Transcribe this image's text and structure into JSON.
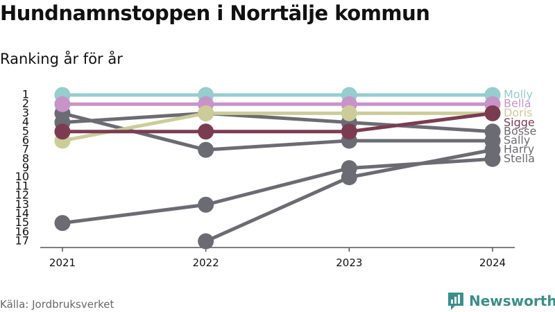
{
  "header": {
    "title": "Hundnamnstoppen i Norrtälje kommun",
    "subtitle": "Ranking år för år"
  },
  "footer": {
    "source": "Källa: Jordbruksverket",
    "brand": "Newsworthy"
  },
  "chart_data": {
    "type": "line",
    "title": "Hundnamnstoppen i Norrtälje kommun",
    "subtitle": "Ranking år för år",
    "x": [
      2021,
      2022,
      2023,
      2024
    ],
    "y_ticks": [
      1,
      2,
      3,
      4,
      5,
      6,
      7,
      8,
      9,
      10,
      11,
      12,
      13,
      14,
      15,
      16,
      17
    ],
    "ylim": [
      1,
      17
    ],
    "y_inverted": true,
    "grid": false,
    "legend": "direct-labels-right",
    "series": [
      {
        "name": "Molly",
        "color": "#96cdcd",
        "values": [
          1,
          1,
          1,
          1
        ]
      },
      {
        "name": "Bella",
        "color": "#c894c8",
        "values": [
          2,
          2,
          2,
          2
        ]
      },
      {
        "name": "Doris",
        "color": "#cccc99",
        "values": [
          6,
          3,
          3,
          3
        ]
      },
      {
        "name": "Sigge",
        "color": "#7b3c52",
        "values": [
          5,
          5,
          5,
          3
        ]
      },
      {
        "name": "Bosse",
        "color": "#6b6b73",
        "values": [
          4,
          3,
          4,
          5
        ]
      },
      {
        "name": "Sally",
        "color": "#6b6b73",
        "values": [
          3,
          7,
          6,
          6
        ]
      },
      {
        "name": "Harry",
        "color": "#6b6b73",
        "values": [
          null,
          17,
          10,
          7
        ]
      },
      {
        "name": "Stella",
        "color": "#6b6b73",
        "values": [
          15,
          13,
          9,
          8
        ]
      }
    ]
  }
}
